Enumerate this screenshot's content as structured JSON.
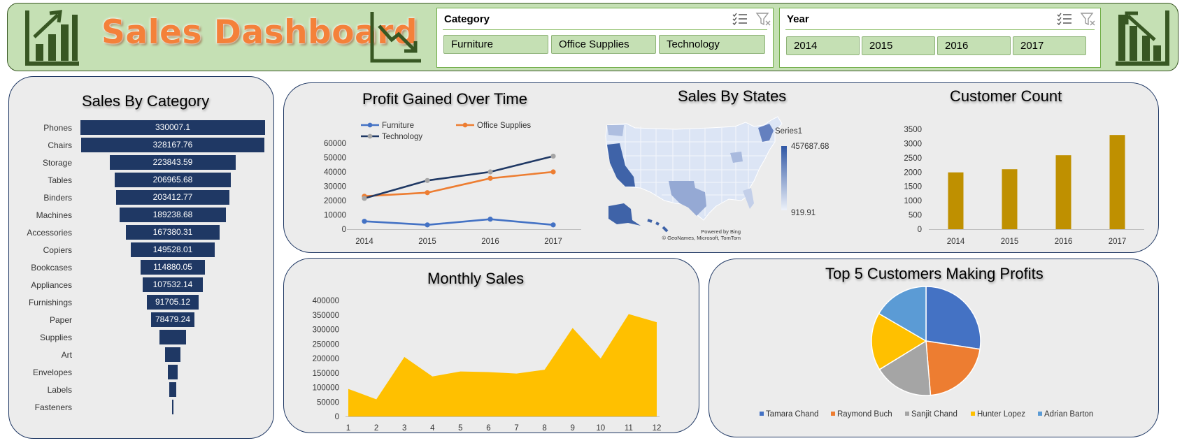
{
  "header": {
    "title": "Sales Dashboard",
    "category_slicer": {
      "title": "Category",
      "options": [
        "Furniture",
        "Office Supplies",
        "Technology"
      ]
    },
    "year_slicer": {
      "title": "Year",
      "options": [
        "2014",
        "2015",
        "2016",
        "2017"
      ]
    },
    "icons": [
      "bar-chart-up-icon",
      "trend-down-icon",
      "bar-chart-down-icon",
      "multi-select-icon",
      "clear-filter-icon"
    ]
  },
  "colors": {
    "header_bg": "#c5e0b4",
    "accent_green": "#385723",
    "title_orange": "#f4813a",
    "navy": "#1f3864",
    "furniture": "#4472c4",
    "office": "#ed7d31",
    "technology": "#1f3864",
    "gold": "#bf9000",
    "area": "#ffc000"
  },
  "chart_data": [
    {
      "id": "sales_by_category",
      "type": "bar",
      "subtype": "funnel",
      "title": "Sales By Category",
      "categories": [
        "Phones",
        "Chairs",
        "Storage",
        "Tables",
        "Binders",
        "Machines",
        "Accessories",
        "Copiers",
        "Bookcases",
        "Appliances",
        "Furnishings",
        "Paper",
        "Supplies",
        "Art",
        "Envelopes",
        "Labels",
        "Fasteners"
      ],
      "values": [
        330007.1,
        328167.76,
        223843.59,
        206965.68,
        203412.77,
        189238.68,
        167380.31,
        149528.01,
        114880.05,
        107532.14,
        91705.12,
        78479.24,
        46673.54,
        27118.79,
        16476.4,
        12486.31,
        3024.28
      ],
      "data_labels": [
        "330007.1",
        "328167.76",
        "223843.59",
        "206965.68",
        "203412.77",
        "189238.68",
        "167380.31",
        "149528.01",
        "114880.05",
        "107532.14",
        "91705.12",
        "78479.24",
        "",
        "",
        "",
        "",
        ""
      ]
    },
    {
      "id": "profit_over_time",
      "type": "line",
      "title": "Profit Gained Over Time",
      "categories": [
        "2014",
        "2015",
        "2016",
        "2017"
      ],
      "series": [
        {
          "name": "Furniture",
          "values": [
            5500,
            3000,
            7000,
            3000
          ]
        },
        {
          "name": "Office Supplies",
          "values": [
            23000,
            25500,
            35500,
            40000
          ]
        },
        {
          "name": "Technology",
          "values": [
            21500,
            34000,
            40000,
            51000
          ]
        }
      ],
      "yticks": [
        "0",
        "10000",
        "20000",
        "30000",
        "40000",
        "50000",
        "60000"
      ],
      "ylim": [
        0,
        60000
      ],
      "legend": "top"
    },
    {
      "id": "sales_by_states",
      "type": "heatmap",
      "subtype": "map",
      "title": "Sales By States",
      "legend_title": "Series1",
      "max_label": "457687.68",
      "min_label": "919.91",
      "credit_line1": "Powered by Bing",
      "credit_line2": "© GeoNames, Microsoft, TomTom"
    },
    {
      "id": "customer_count",
      "type": "bar",
      "title": "Customer Count",
      "categories": [
        "2014",
        "2015",
        "2016",
        "2017"
      ],
      "values": [
        1990,
        2100,
        2590,
        3300
      ],
      "yticks": [
        "0",
        "500",
        "1000",
        "1500",
        "2000",
        "2500",
        "3000",
        "3500"
      ],
      "ylim": [
        0,
        3500
      ]
    },
    {
      "id": "monthly_sales",
      "type": "area",
      "title": "Monthly Sales",
      "categories": [
        "1",
        "2",
        "3",
        "4",
        "5",
        "6",
        "7",
        "8",
        "9",
        "10",
        "11",
        "12"
      ],
      "values": [
        95000,
        59000,
        205000,
        138000,
        155000,
        153000,
        148000,
        161000,
        305000,
        200000,
        353000,
        325000
      ],
      "yticks": [
        "0",
        "50000",
        "100000",
        "150000",
        "200000",
        "250000",
        "300000",
        "350000",
        "400000"
      ],
      "ylim": [
        0,
        400000
      ]
    },
    {
      "id": "top5_customers",
      "type": "pie",
      "title": "Top 5 Customers Making Profits",
      "labels": [
        "Tamara Chand",
        "Raymond Buch",
        "Sanjit Chand",
        "Hunter Lopez",
        "Adrian Barton"
      ],
      "values": [
        8981,
        6976,
        5757,
        5622,
        5445
      ],
      "legend": "bottom"
    }
  ]
}
